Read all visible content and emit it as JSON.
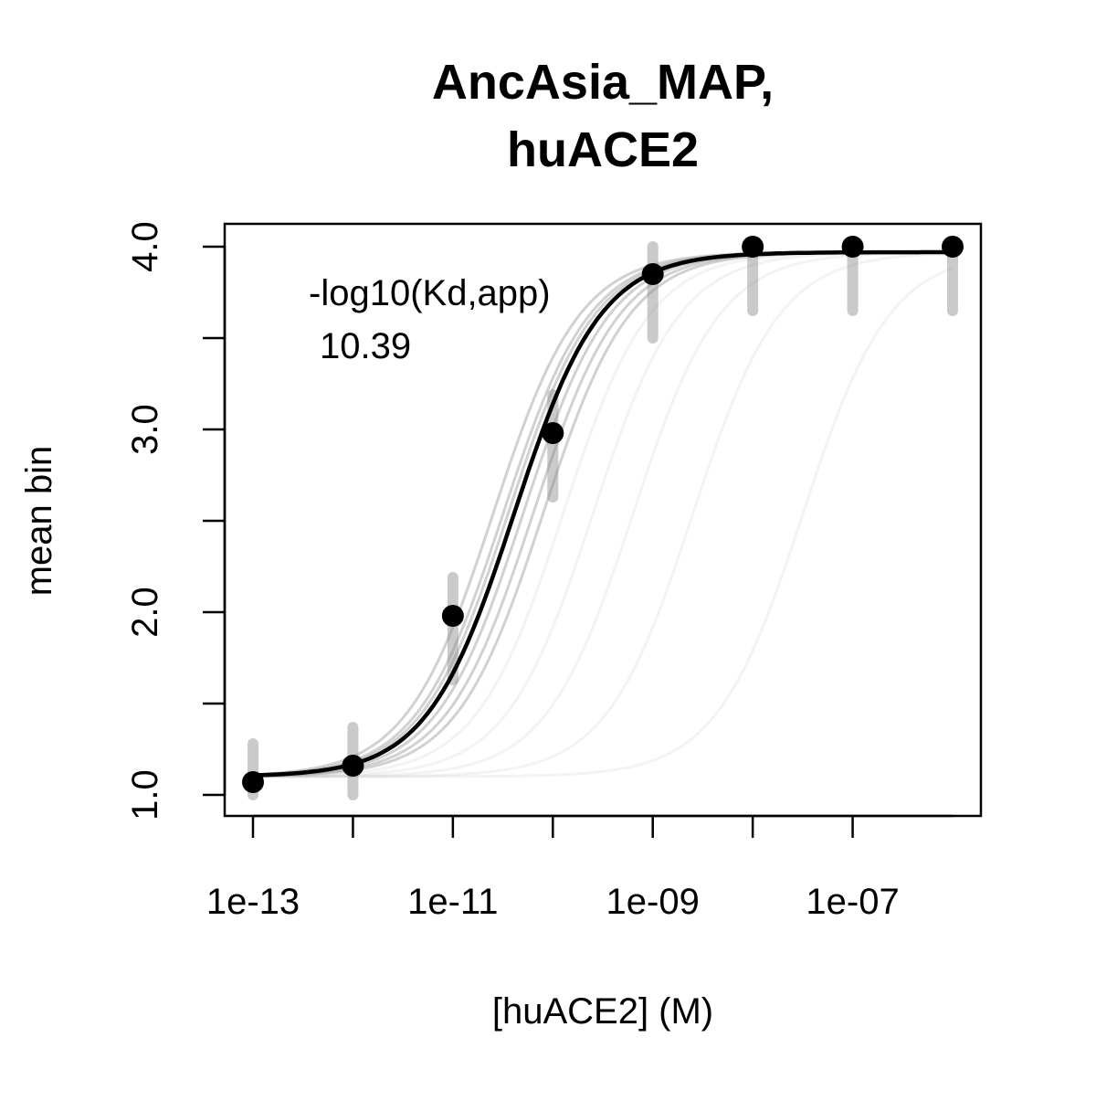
{
  "chart_data": {
    "type": "scatter",
    "title_lines": [
      "AncAsia_MAP,",
      "huACE2"
    ],
    "xlabel": "[huACE2] (M)",
    "ylabel": "mean bin",
    "x_scale": "log10",
    "xlim": [
      1e-13,
      1e-06
    ],
    "ylim": [
      1.0,
      4.0
    ],
    "x_ticks": [
      1e-13,
      1e-11,
      1e-09,
      1e-07
    ],
    "x_tick_labels": [
      "1e-13",
      "1e-11",
      "1e-09",
      "1e-07"
    ],
    "x_minor_ticks": [
      1e-12,
      1e-10,
      1e-08
    ],
    "y_ticks": [
      1.0,
      2.0,
      3.0,
      4.0
    ],
    "y_tick_labels": [
      "1.0",
      "2.0",
      "3.0",
      "4.0"
    ],
    "y_minor_ticks": [
      1.5,
      2.5,
      3.5
    ],
    "grid": false,
    "annotation": {
      "label": "-log10(Kd,app)",
      "value": "10.39"
    },
    "series": [
      {
        "kind": "points",
        "x": [
          1e-13,
          1e-12,
          1e-11,
          1e-10,
          1e-09,
          1e-08,
          1e-07,
          1e-06
        ],
        "y": [
          1.07,
          1.16,
          1.98,
          2.98,
          3.85,
          4.0,
          4.0,
          4.0
        ],
        "color": "#000000"
      },
      {
        "kind": "fit",
        "log10_kd": -10.39,
        "bottom": 1.1,
        "top": 3.97,
        "hill": 1.0,
        "color": "#000000"
      }
    ],
    "background_fits": {
      "color": "#9a9a9a",
      "log10_kd_values": [
        -10.6,
        -10.5,
        -10.45,
        -10.3,
        -10.2,
        -10.1,
        -9.9,
        -9.6,
        -9.2,
        -8.6,
        -7.5
      ]
    }
  }
}
